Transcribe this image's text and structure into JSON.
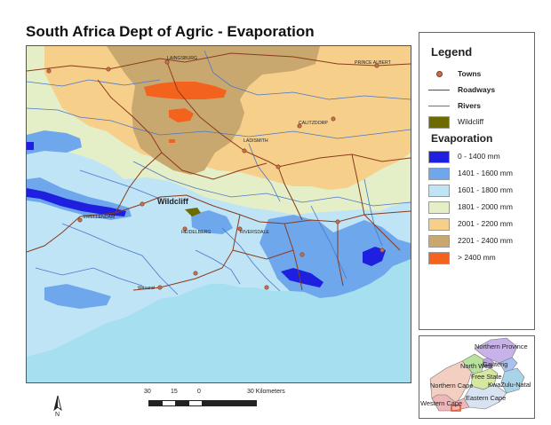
{
  "title": "South Africa Dept of Agric - Evaporation",
  "map": {
    "towns": [
      "LAINGSBURG",
      "PRINCE ALBERT",
      "LADISMITH",
      "CALITZDORP",
      "SWELLENDAM",
      "HEIDELBERG",
      "RIVERSDALE",
      "Witsand"
    ],
    "feature_label": "Wildcliff"
  },
  "legend": {
    "title": "Legend",
    "symbols": [
      {
        "label": "Towns",
        "kind": "point",
        "color": "#c8704a"
      },
      {
        "label": "Roadways",
        "kind": "line",
        "color": "#8b3a1c"
      },
      {
        "label": "Rivers",
        "kind": "line",
        "color": "#4a76c8"
      },
      {
        "label": "Wildcliff",
        "kind": "area",
        "color": "#6b6b00"
      }
    ],
    "evaporation_title": "Evaporation",
    "classes": [
      {
        "label": "0 - 1400 mm",
        "color": "#1f1fe0"
      },
      {
        "label": "1401 - 1600 mm",
        "color": "#6ea7ec"
      },
      {
        "label": "1601 - 1800 mm",
        "color": "#bfe4f6"
      },
      {
        "label": "1801 - 2000 mm",
        "color": "#e4efc7"
      },
      {
        "label": "2001 - 2200 mm",
        "color": "#f6cf8b"
      },
      {
        "label": "2201 - 2400 mm",
        "color": "#c9a870"
      },
      {
        "label": "> 2400 mm",
        "color": "#f4631e"
      }
    ]
  },
  "inset": {
    "provinces": [
      "Northern Province",
      "North West",
      "Gauteng",
      "Free State",
      "KwaZulu-Natal",
      "Northern Cape",
      "Eastern Cape",
      "Western Cape"
    ]
  },
  "scale_bar": {
    "labels": [
      "30",
      "15",
      "0",
      "30 Kilometers"
    ]
  },
  "north_label": "N"
}
